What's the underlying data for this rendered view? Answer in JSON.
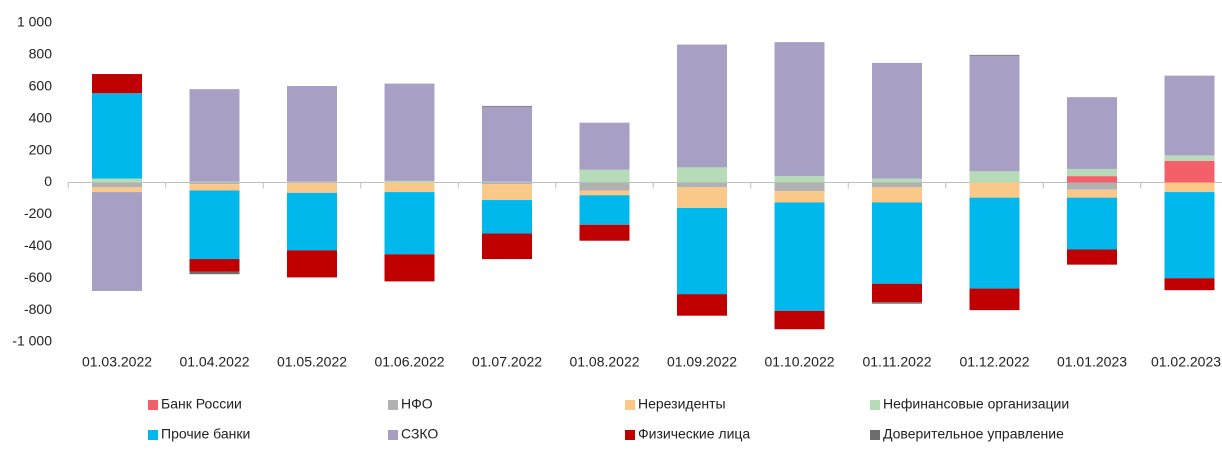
{
  "chart_data": {
    "type": "bar",
    "stacked": true,
    "categories": [
      "01.03.2022",
      "01.04.2022",
      "01.05.2022",
      "01.06.2022",
      "01.07.2022",
      "01.08.2022",
      "01.09.2022",
      "01.10.2022",
      "01.11.2022",
      "01.12.2022",
      "01.01.2023",
      "01.02.2023"
    ],
    "series": [
      {
        "name": "Банк России",
        "color": "#f4606a",
        "values": [
          0,
          0,
          0,
          0,
          0,
          0,
          0,
          0,
          0,
          0,
          40,
          135
        ]
      },
      {
        "name": "НФО",
        "color": "#b1b1b1",
        "values": [
          -30,
          -10,
          -5,
          0,
          -10,
          -50,
          -30,
          -55,
          -30,
          0,
          -45,
          0
        ]
      },
      {
        "name": "Нерезиденты",
        "color": "#fac98a",
        "values": [
          -30,
          -40,
          -60,
          -60,
          -100,
          -30,
          -130,
          -70,
          -95,
          -95,
          -50,
          -60
        ]
      },
      {
        "name": "Нефинансовые организации",
        "color": "#b6dbb9",
        "values": [
          25,
          5,
          5,
          10,
          5,
          80,
          95,
          40,
          25,
          70,
          45,
          35
        ]
      },
      {
        "name": "Прочие банки",
        "color": "#00b8ec",
        "values": [
          535,
          -430,
          -360,
          -390,
          -210,
          -185,
          -540,
          -680,
          -510,
          -570,
          -325,
          -540
        ]
      },
      {
        "name": "СЗКО",
        "color": "#a89fc5",
        "values": [
          -620,
          580,
          600,
          610,
          470,
          295,
          770,
          840,
          725,
          725,
          450,
          500
        ]
      },
      {
        "name": "Физические лица",
        "color": "#c00000",
        "values": [
          120,
          -80,
          -170,
          -170,
          -160,
          -100,
          -135,
          -115,
          -115,
          -135,
          -95,
          -75
        ]
      },
      {
        "name": "Доверительное управление",
        "color": "#6d6d6d",
        "values": [
          0,
          -15,
          0,
          0,
          5,
          0,
          0,
          0,
          -10,
          5,
          0,
          0
        ]
      }
    ],
    "ylim": [
      -1000,
      1000
    ],
    "yticks": [
      {
        "value": -1000,
        "label": "-1 000"
      },
      -800,
      -600,
      -400,
      -200,
      0,
      200,
      400,
      600,
      800,
      {
        "value": 1000,
        "label": "1 000"
      }
    ]
  }
}
